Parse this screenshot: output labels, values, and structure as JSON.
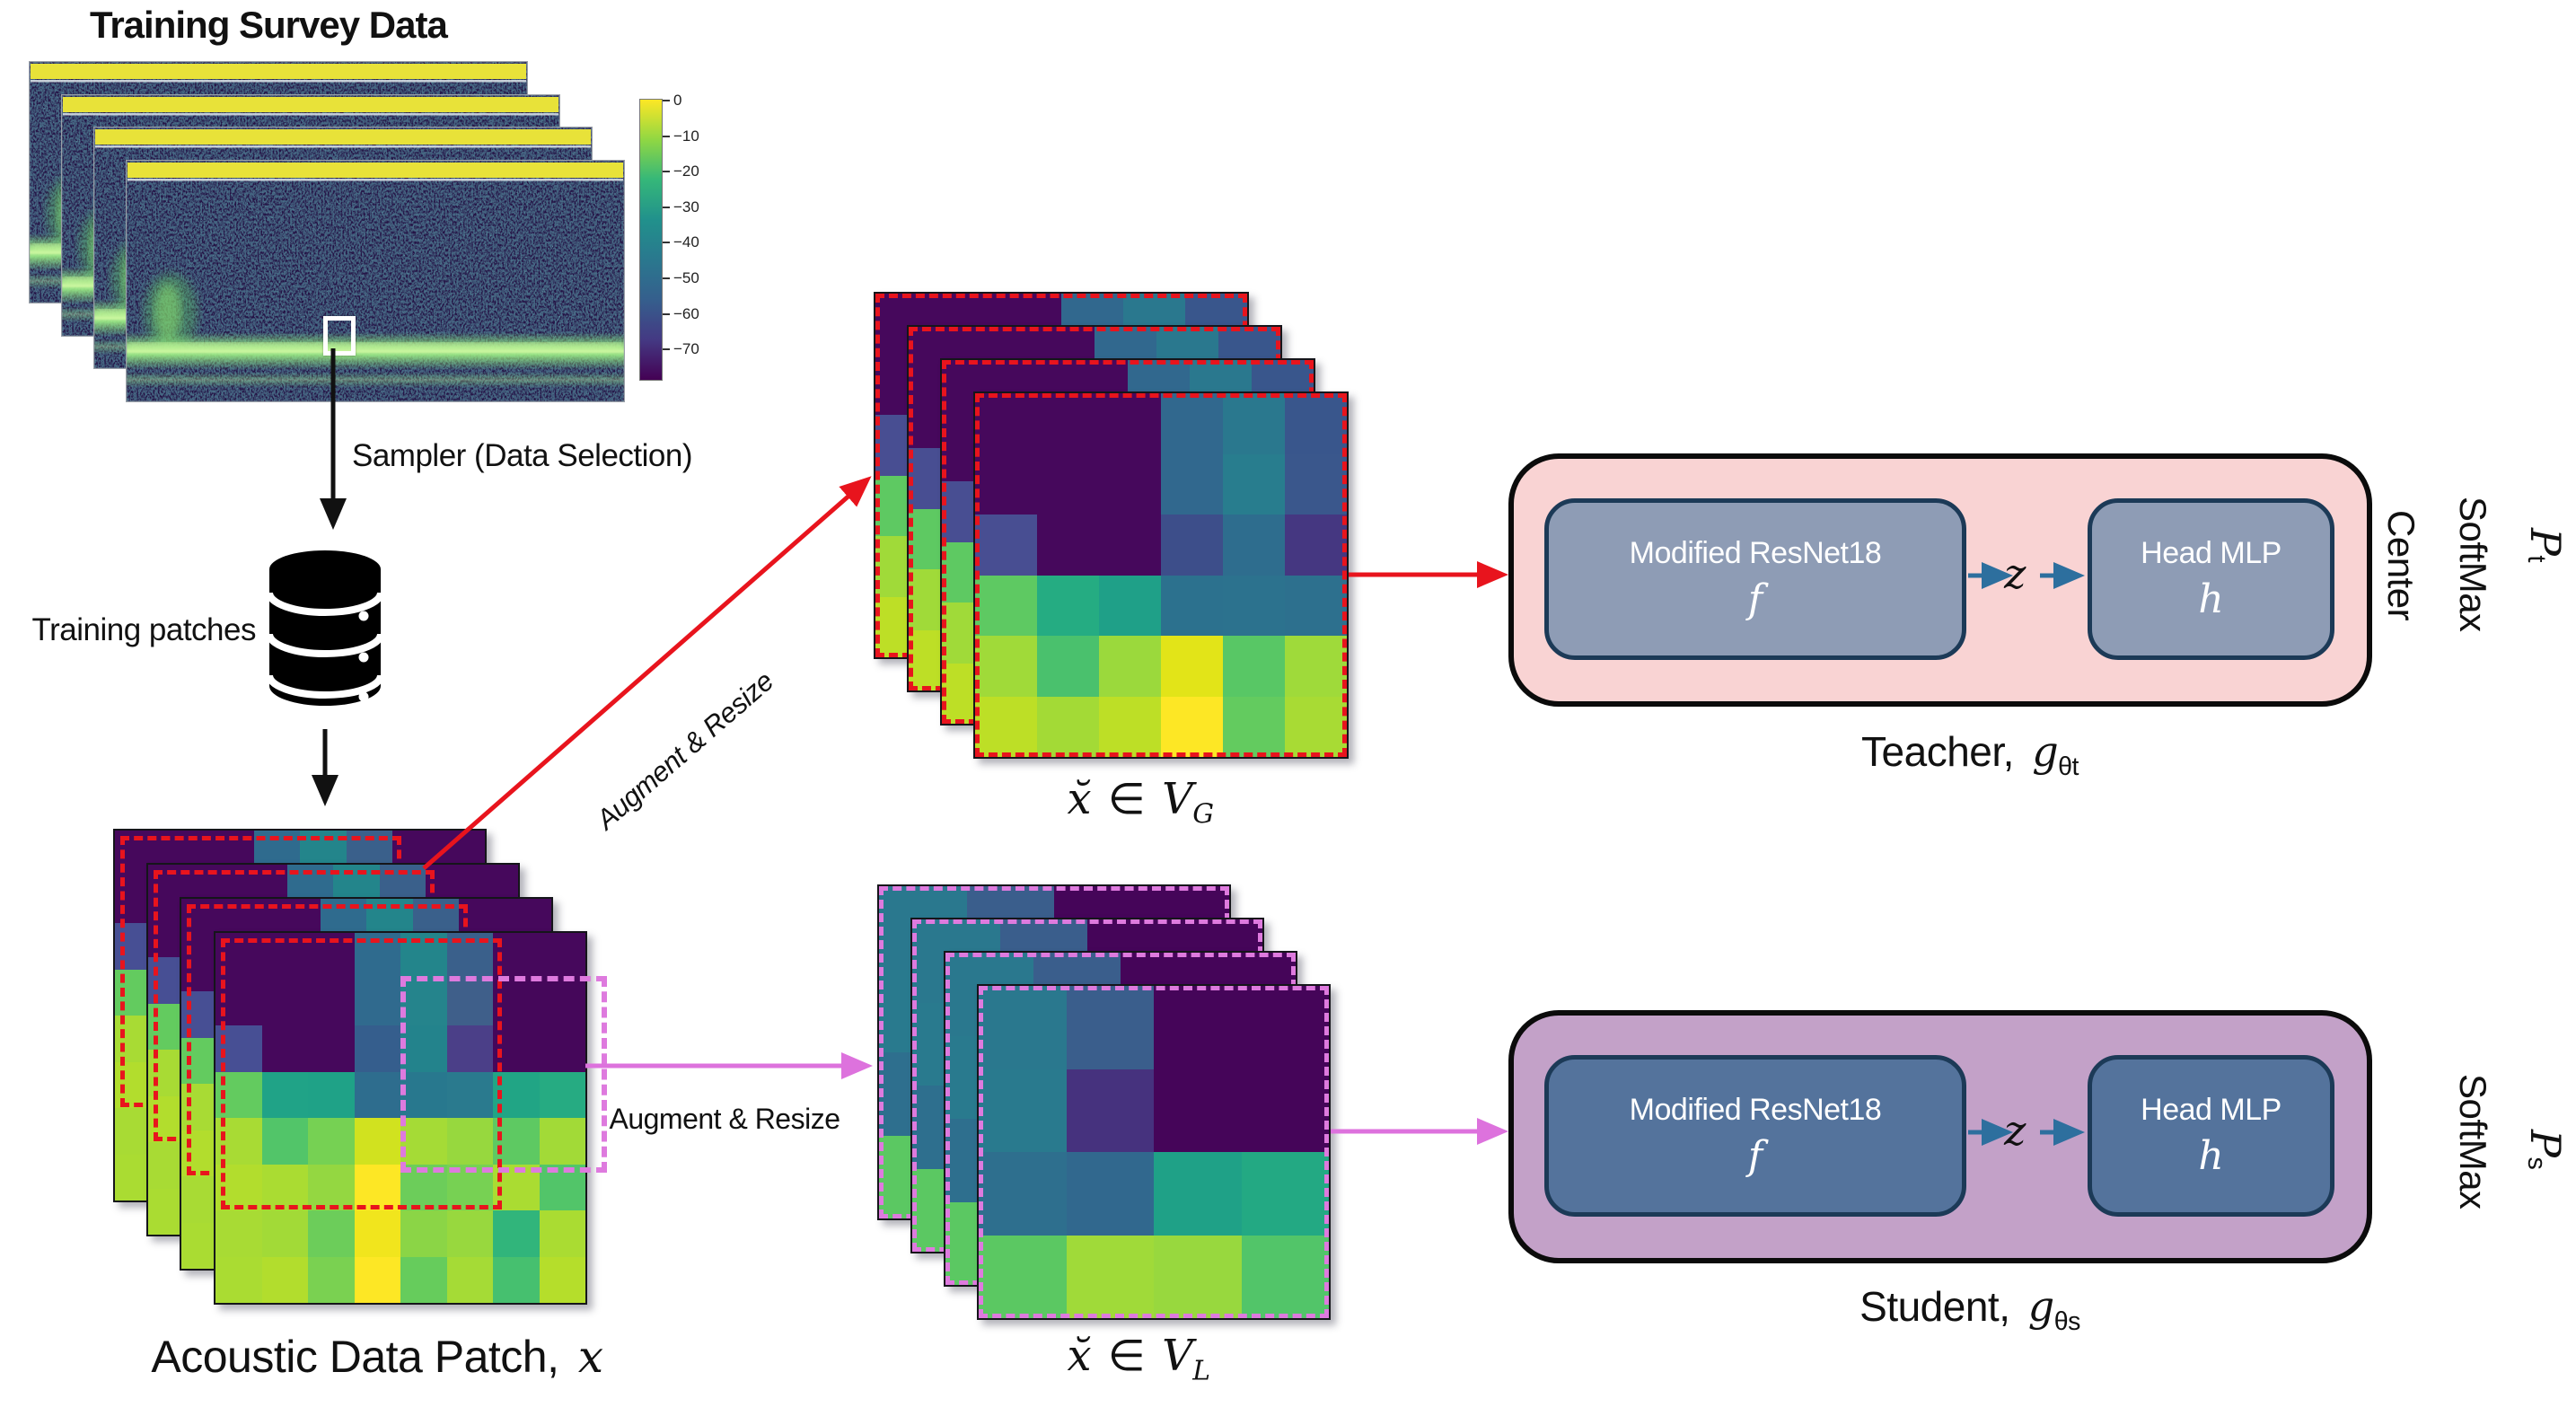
{
  "figure": {
    "title": "Training Survey Data",
    "sampler_label": "Sampler (Data Selection)",
    "training_patches_label": "Training patches",
    "acoustic_patch_label": "Acoustic Data Patch,",
    "acoustic_patch_symbol": "x",
    "augment_resize_global": "Augment & Resize",
    "augment_resize_local": "Augment & Resize"
  },
  "colorbar": {
    "tick_labels": [
      "0",
      "−10",
      "−20",
      "−30",
      "−40",
      "−50",
      "−60",
      "−70"
    ],
    "gradient": [
      "#fde725",
      "#90d743",
      "#35b779",
      "#21918c",
      "#2a788e",
      "#355f8d",
      "#443983",
      "#440154"
    ]
  },
  "views": {
    "global": {
      "symbol": "x̆",
      "element_of": "∈",
      "set_symbol": "V",
      "set_subscript": "G"
    },
    "local": {
      "symbol": "x̆",
      "element_of": "∈",
      "set_symbol": "V",
      "set_subscript": "L"
    }
  },
  "latent_symbol": "z",
  "teacher": {
    "backbone_label": "Modified ResNet18",
    "backbone_symbol": "f",
    "head_label": "Head MLP",
    "head_symbol": "h",
    "name_label": "Teacher,",
    "name_symbol": "g",
    "name_subscript": "θt",
    "center_label": "Center",
    "softmax_label": "SoftMax",
    "output_symbol": "P",
    "output_subscript": "t"
  },
  "student": {
    "backbone_label": "Modified ResNet18",
    "backbone_symbol": "f",
    "head_label": "Head MLP",
    "head_symbol": "h",
    "name_label": "Student,",
    "name_symbol": "g",
    "name_subscript": "θs",
    "softmax_label": "SoftMax",
    "output_symbol": "P",
    "output_subscript": "s"
  },
  "grids": {
    "patch": [
      [
        "#46085c",
        "#46085c",
        "#46085c",
        "#2f6b8e",
        "#23858b",
        "#3a608b",
        "#46085c",
        "#46085c"
      ],
      [
        "#46085c",
        "#46085c",
        "#46085c",
        "#306a8e",
        "#25848c",
        "#3f5f8a",
        "#45075a",
        "#45075a"
      ],
      [
        "#474f94",
        "#46085c",
        "#46085c",
        "#355e8d",
        "#23838c",
        "#4b3f88",
        "#45075a",
        "#45075a"
      ],
      [
        "#63cb5f",
        "#20a387",
        "#1fa287",
        "#2e6d8e",
        "#28788e",
        "#2a7a8e",
        "#21a585",
        "#26ab82"
      ],
      [
        "#a8db34",
        "#52c569",
        "#76d153",
        "#d1e21f",
        "#a5db36",
        "#97d83e",
        "#5ec962",
        "#a2da37"
      ],
      [
        "#b2dd2d",
        "#aadc32",
        "#94d741",
        "#fde725",
        "#6ccd5a",
        "#77d153",
        "#aadc32",
        "#52c569"
      ],
      [
        "#a8db34",
        "#a2da37",
        "#6ccd5a",
        "#f1e51d",
        "#8bd546",
        "#98d83e",
        "#31b57b",
        "#aadc32"
      ],
      [
        "#aadc32",
        "#b2dd2d",
        "#7ad151",
        "#fde725",
        "#66cc5c",
        "#a5db36",
        "#46c06f",
        "#b5de2b"
      ]
    ],
    "global_view": [
      [
        "#46085c",
        "#46085c",
        "#46085c",
        "#31688e",
        "#2a788e",
        "#39568c"
      ],
      [
        "#46085c",
        "#46085c",
        "#46085c",
        "#31688e",
        "#287d8e",
        "#3a578c"
      ],
      [
        "#484e92",
        "#46085c",
        "#46085c",
        "#3d4e8a",
        "#2e6d8e",
        "#453781"
      ],
      [
        "#5ec962",
        "#25ac82",
        "#1fa088",
        "#2c718e",
        "#2c728e",
        "#2d708e"
      ],
      [
        "#a0da39",
        "#4ac16d",
        "#9bd93c",
        "#e2e418",
        "#58c765",
        "#9fda3a"
      ],
      [
        "#bddf26",
        "#a3da36",
        "#bddf26",
        "#fde725",
        "#63cb5f",
        "#a8db34"
      ]
    ],
    "local_view": [
      [
        "#2a788e",
        "#3a5e8c",
        "#450559",
        "#450559"
      ],
      [
        "#297a8e",
        "#46327e",
        "#450559",
        "#450559"
      ],
      [
        "#2e6f8e",
        "#31688e",
        "#1fa187",
        "#23a983"
      ],
      [
        "#5bc862",
        "#a0da39",
        "#98d83e",
        "#52c569"
      ]
    ]
  },
  "colors": {
    "red_arrow": "#e8141d",
    "red_dash": "#e8141d",
    "magenta_arrow": "#dd72dd",
    "magenta_dash": "#de7ade",
    "blue_arrow": "#2d6f9e",
    "black_arrow": "#111111",
    "teacher_fill": "#f9d3d3",
    "student_fill": "#c3a1c8",
    "teacher_inner_fill": "#8e9cb5",
    "student_inner_fill": "#54739c",
    "inner_stroke": "#1c3a57",
    "echo_bg": "#241245",
    "echo_top_band": "#e8e239",
    "echo_seabed": "#9dee85"
  }
}
